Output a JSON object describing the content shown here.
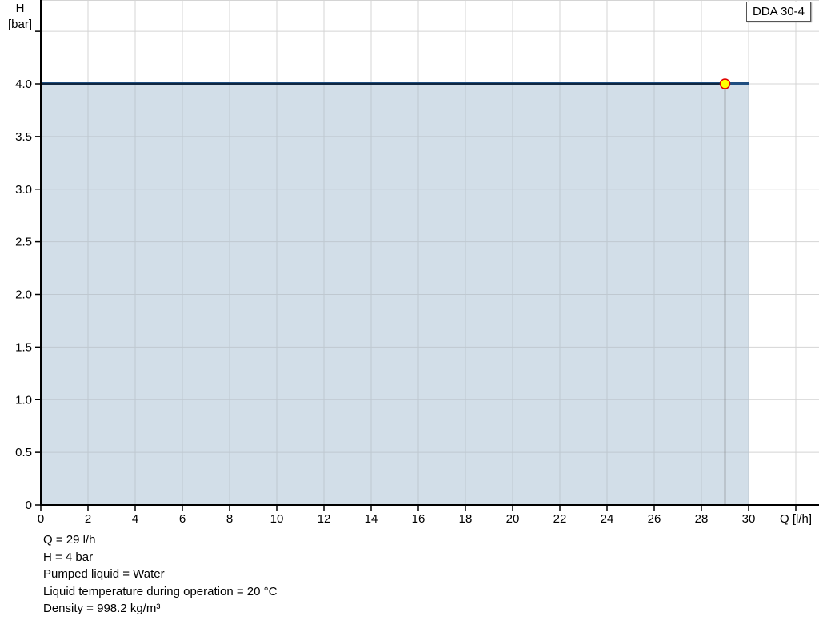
{
  "chart_data": {
    "type": "line",
    "title": "",
    "xlabel": "Q [l/h]",
    "ylabel_line1": "H",
    "ylabel_line2": "[bar]",
    "xlim": [
      0,
      33
    ],
    "ylim": [
      0,
      4.8
    ],
    "x_ticks": [
      0,
      2,
      4,
      6,
      8,
      10,
      12,
      14,
      16,
      18,
      20,
      22,
      24,
      26,
      28,
      30
    ],
    "y_ticks": [
      "0",
      "0.5",
      "1.0",
      "1.5",
      "2.0",
      "2.5",
      "3.0",
      "3.5",
      "4.0"
    ],
    "grid": true,
    "legend_position": "top-right",
    "series": [
      {
        "name": "DDA 30-4",
        "x": [
          0,
          30
        ],
        "y": [
          4,
          4
        ],
        "color": "#1f4e80",
        "fill": "#d0dce7"
      }
    ],
    "operating_point": {
      "x": 29,
      "y": 4,
      "fill": "#ffff00",
      "stroke": "#e00000"
    }
  },
  "info": [
    "Q = 29 l/h",
    "H = 4 bar",
    "Pumped liquid = Water",
    "Liquid temperature during operation = 20 °C",
    "Density = 998.2 kg/m³"
  ]
}
